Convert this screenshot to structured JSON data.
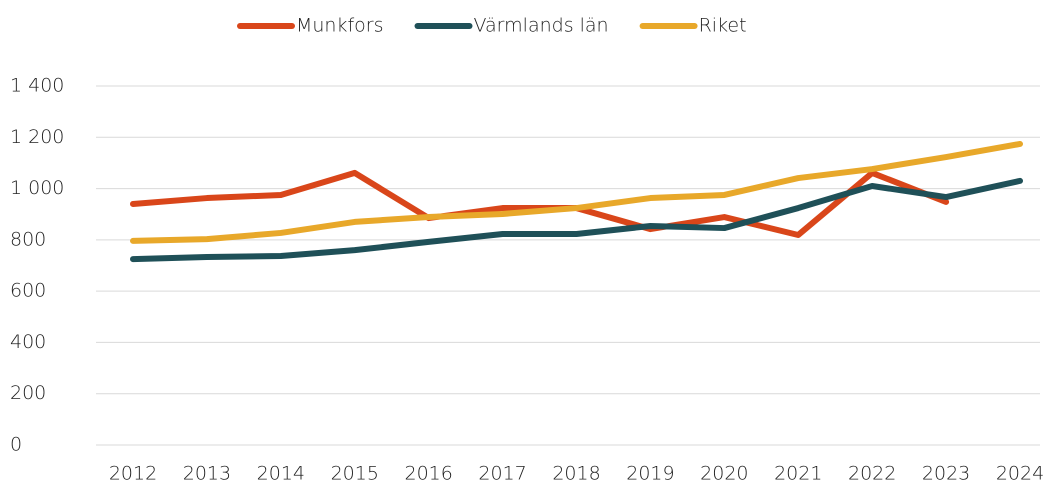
{
  "chart_data": {
    "type": "line",
    "categories": [
      "2012",
      "2013",
      "2014",
      "2015",
      "2016",
      "2017",
      "2018",
      "2019",
      "2020",
      "2021",
      "2022",
      "2023",
      "2024"
    ],
    "series": [
      {
        "name": "Munkfors",
        "color": "#d9461a",
        "values": [
          940,
          963,
          975,
          1061,
          885,
          924,
          924,
          842,
          889,
          819,
          1061,
          948,
          null
        ]
      },
      {
        "name": "Värmlands län",
        "color": "#1f5058",
        "values": [
          725,
          733,
          737,
          760,
          792,
          823,
          823,
          854,
          846,
          924,
          1010,
          967,
          1030
        ]
      },
      {
        "name": "Riket",
        "color": "#e8a82a",
        "values": [
          796,
          803,
          827,
          870,
          889,
          901,
          924,
          963,
          975,
          1041,
          1076,
          1123,
          1174
        ]
      }
    ],
    "ylim": [
      0,
      1400
    ],
    "yticks": [
      0,
      200,
      400,
      600,
      800,
      {
        "value": 1000,
        "label": "1 000"
      },
      {
        "value": 1200,
        "label": "1 200"
      },
      {
        "value": 1400,
        "label": "1 400"
      }
    ],
    "grid": true,
    "legend": "top"
  }
}
